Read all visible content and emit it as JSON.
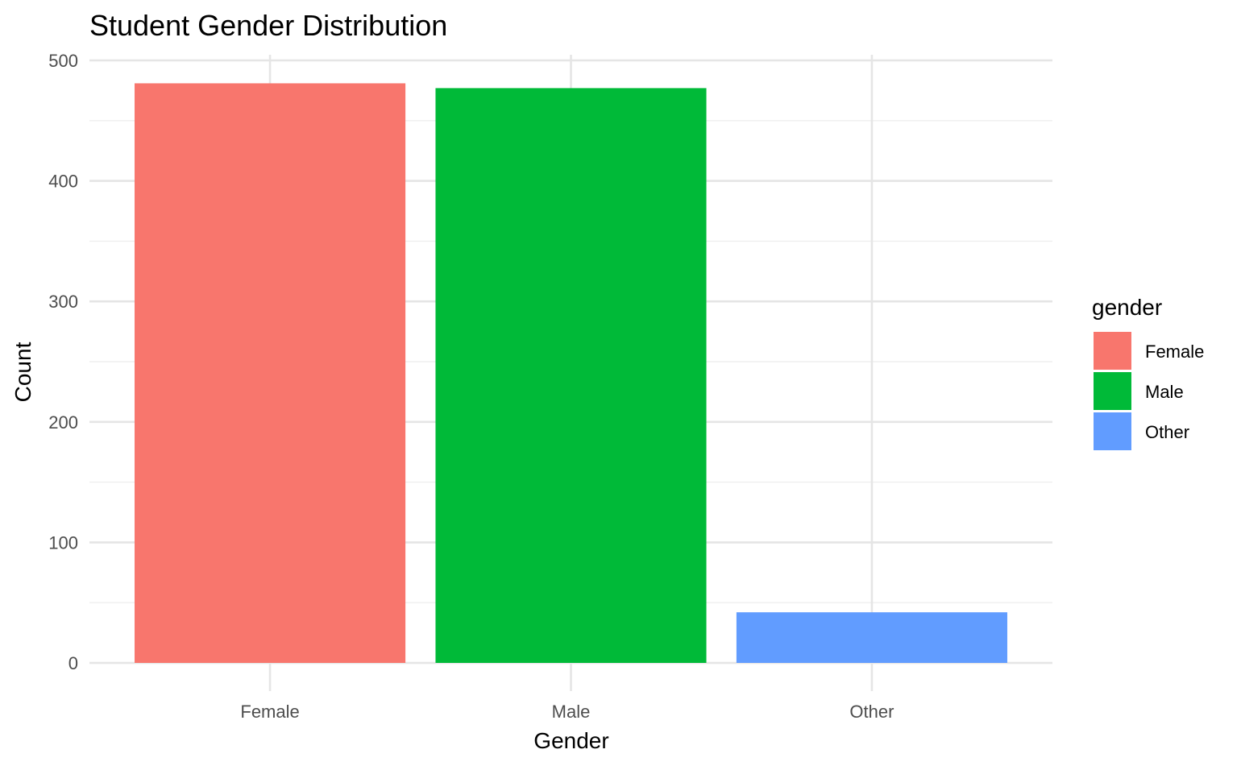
{
  "chart_data": {
    "type": "bar",
    "title": "Student Gender Distribution",
    "xlabel": "Gender",
    "ylabel": "Count",
    "categories": [
      "Female",
      "Male",
      "Other"
    ],
    "values": [
      481,
      477,
      42
    ],
    "colors": [
      "#F8766D",
      "#00BA38",
      "#619CFF"
    ],
    "ylim": [
      0,
      500
    ],
    "yticks": [
      0,
      100,
      200,
      300,
      400,
      500
    ],
    "grid": true,
    "legend": {
      "title": "gender",
      "placement": "right",
      "entries": [
        "Female",
        "Male",
        "Other"
      ]
    }
  }
}
